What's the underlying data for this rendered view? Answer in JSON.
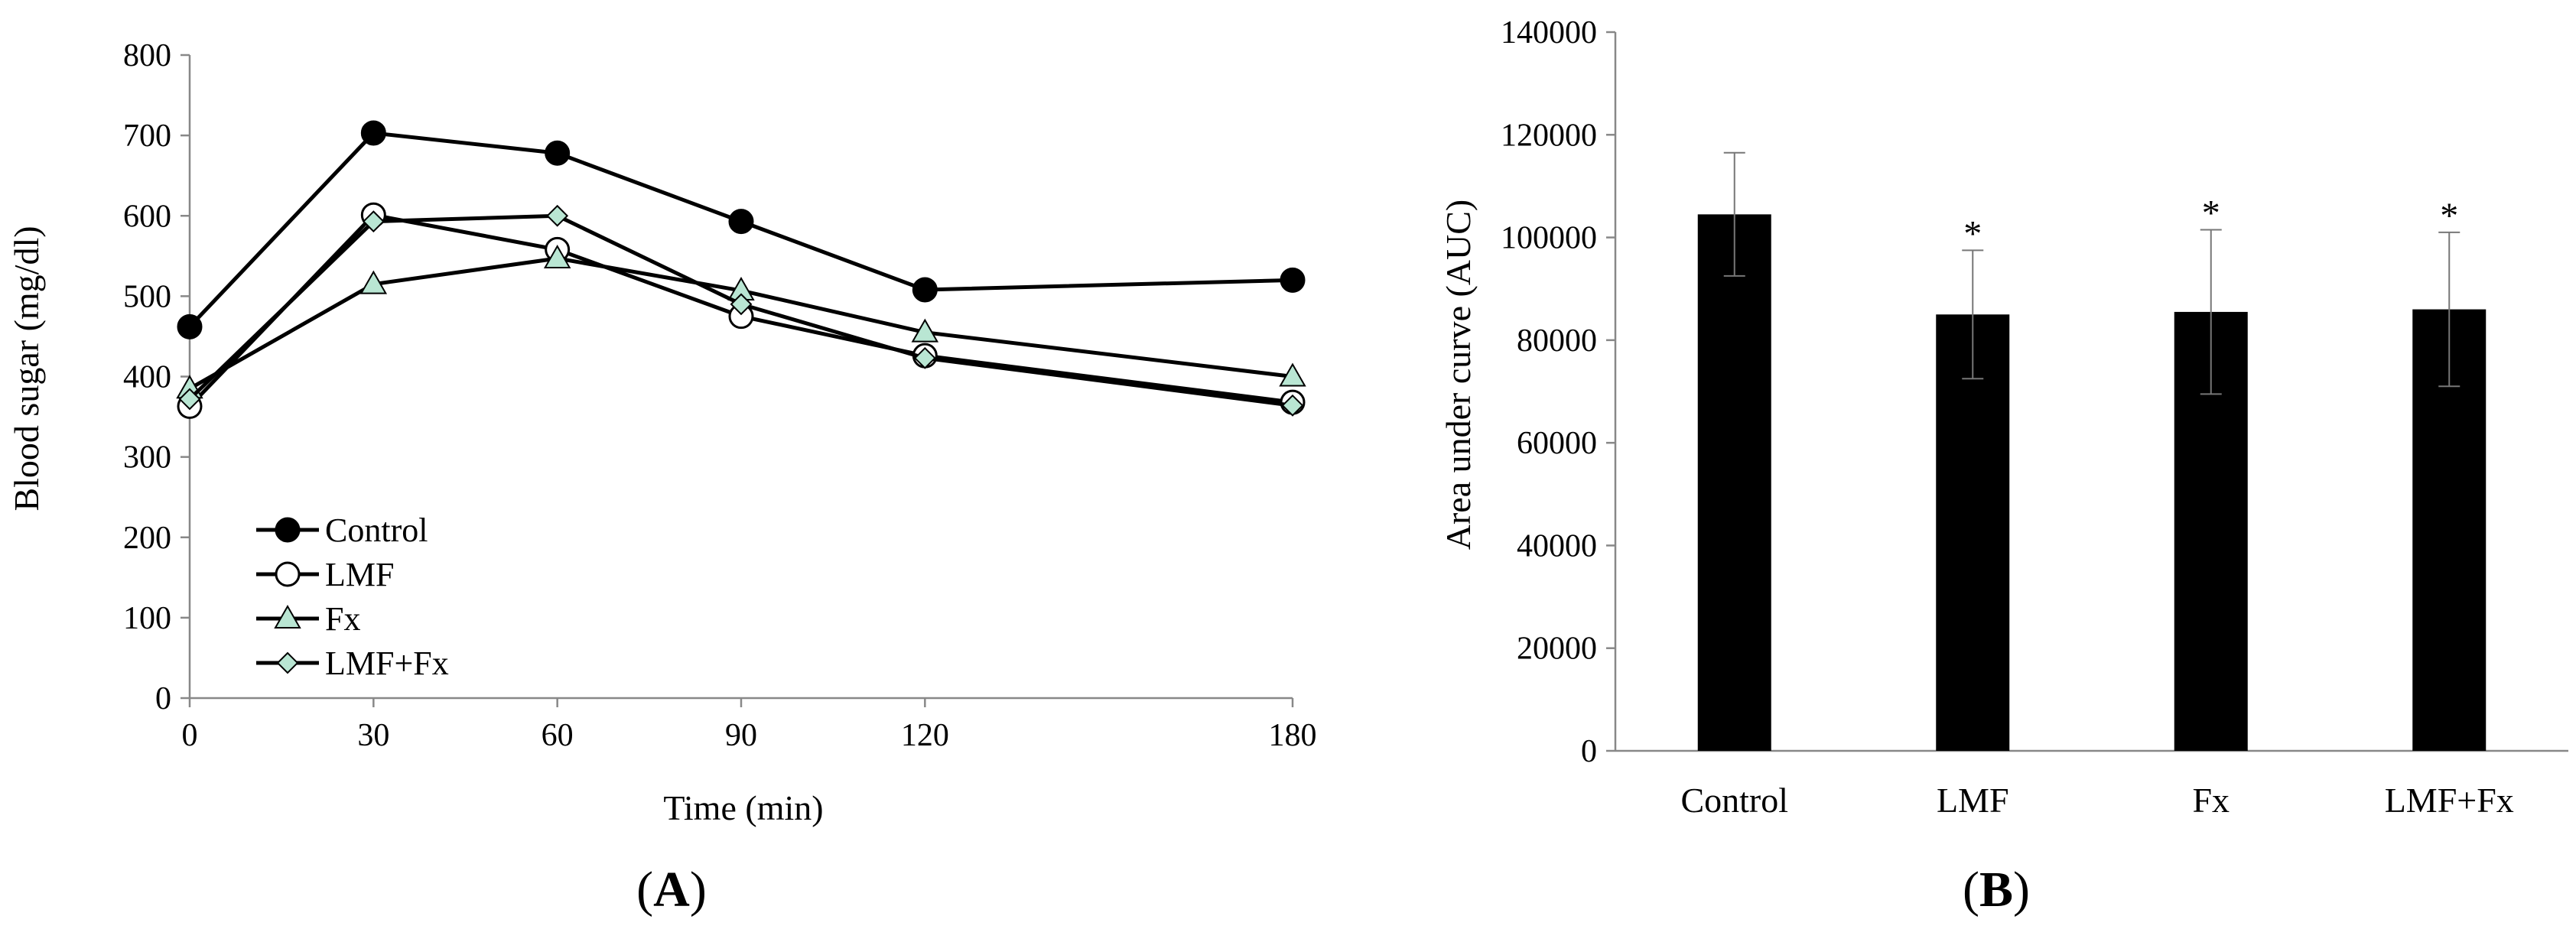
{
  "chart_data": [
    {
      "type": "line",
      "panel_label": {
        "open": "(",
        "letter": "A",
        "close": ")"
      },
      "title": "",
      "xlabel": "Time (min)",
      "ylabel": "Blood sugar (mg/dl)",
      "x": [
        0,
        30,
        60,
        90,
        120,
        180
      ],
      "x_tick_labels": [
        "0",
        "30",
        "60",
        "90",
        "120",
        "180"
      ],
      "y_ticks": [
        0,
        100,
        200,
        300,
        400,
        500,
        600,
        700,
        800
      ],
      "ylim": [
        0,
        800
      ],
      "legend_position": "bottom-left",
      "series": [
        {
          "name": "Control",
          "marker": "circle",
          "fill": "#000000",
          "values": [
            462,
            703,
            678,
            593,
            508,
            520
          ]
        },
        {
          "name": "LMF",
          "marker": "circle",
          "fill": "#ffffff",
          "values": [
            363,
            601,
            558,
            475,
            426,
            368
          ]
        },
        {
          "name": "Fx",
          "marker": "triangle",
          "fill": "#b9e6d3",
          "values": [
            385,
            515,
            547,
            507,
            455,
            400
          ]
        },
        {
          "name": "LMF+Fx",
          "marker": "diamond",
          "fill": "#b9e6d3",
          "values": [
            372,
            593,
            600,
            490,
            423,
            364
          ]
        }
      ]
    },
    {
      "type": "bar",
      "panel_label": {
        "open": "(",
        "letter": "B",
        "close": ")"
      },
      "title": "",
      "xlabel": "",
      "ylabel": "Area under curve (AUC)",
      "categories": [
        "Control",
        "LMF",
        "Fx",
        "LMF+Fx"
      ],
      "values": [
        104500,
        85000,
        85500,
        86000
      ],
      "error": [
        12000,
        12500,
        16000,
        15000
      ],
      "significance": [
        "",
        "*",
        "*",
        "*"
      ],
      "y_ticks": [
        0,
        20000,
        40000,
        60000,
        80000,
        100000,
        120000,
        140000
      ],
      "ylim": [
        0,
        140000
      ],
      "bar_color": "#000000"
    }
  ]
}
